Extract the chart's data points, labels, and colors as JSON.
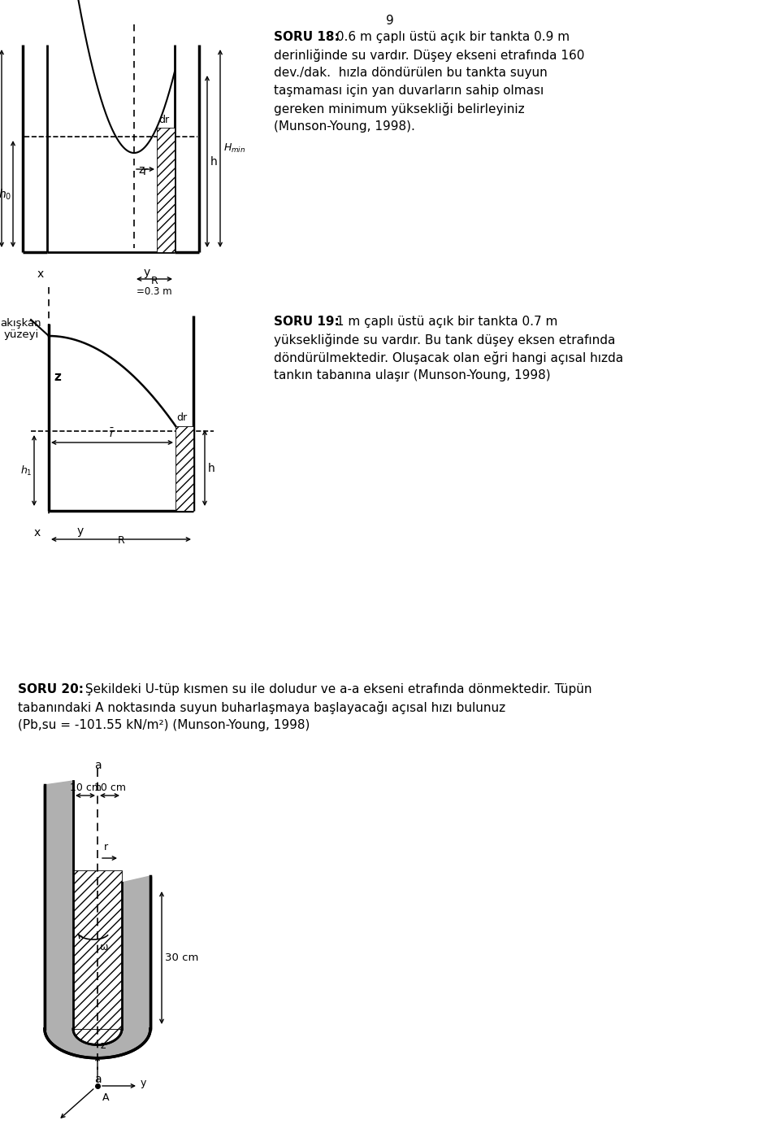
{
  "page_number": "9",
  "bg_color": "#ffffff",
  "text_color": "#000000",
  "soru18_title": "SORU 18:",
  "soru18_text1": " 0.6 m çaplı üstü açık bir tankta 0.9 m",
  "soru18_text2": "derinliğinde su vardır. Düşey ekseni etrafında 160",
  "soru18_text3": "dev./dak.  hızla döndürülen bu tankta suyun",
  "soru18_text4": "taşmaması için yan duvarların sahip olması",
  "soru18_text5": "gereken minimum yüksekliği belirleyiniz",
  "soru18_text6": "(Munson-Young, 1998).",
  "soru19_title": "SORU 19:",
  "soru19_text1": " 1 m çaplı üstü açık bir tankta 0.7 m",
  "soru19_text2": "yüksekliğinde su vardır. Bu tank düşey eksen etrafında",
  "soru19_text3": "döndürülmektedir. Oluşacak olan eğri hangi açısal hızda",
  "soru19_text4": "tankın tabanına ulaşır (Munson-Young, 1998)",
  "soru20_title": "SORU 20:",
  "soru20_text1": " Şekildeki U-tüp kısmen su ile doludur ve a-a ekseni etrafında dönmektedir. Tüpün",
  "soru20_text2": "tabanındaki A noktasında suyun buharlaşmaya başlayacağı açısal hızı bulunuz",
  "soru20_text3": "(Pb,su = -101.55 kN/m²) (Munson-Young, 1998)"
}
